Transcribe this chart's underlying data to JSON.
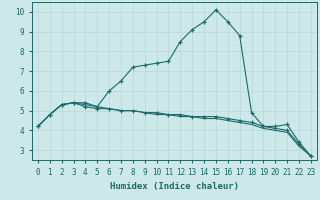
{
  "xlabel": "Humidex (Indice chaleur)",
  "ylabel": "",
  "background_color": "#cce8e8",
  "grid_color": "#b8d8d8",
  "line_color": "#1a6b6b",
  "xlim": [
    -0.5,
    23.5
  ],
  "ylim": [
    2.5,
    10.5
  ],
  "xticks": [
    0,
    1,
    2,
    3,
    4,
    5,
    6,
    7,
    8,
    9,
    10,
    11,
    12,
    13,
    14,
    15,
    16,
    17,
    18,
    19,
    20,
    21,
    22,
    23
  ],
  "yticks": [
    3,
    4,
    5,
    6,
    7,
    8,
    9,
    10
  ],
  "curve1_x": [
    0,
    1,
    2,
    3,
    4,
    5,
    6,
    7,
    8,
    9,
    10,
    11,
    12,
    13,
    14,
    15,
    16,
    17,
    18,
    19,
    20,
    21,
    22,
    23
  ],
  "curve1_y": [
    4.2,
    4.8,
    5.3,
    5.4,
    5.4,
    5.2,
    6.0,
    6.5,
    7.2,
    7.3,
    7.4,
    7.5,
    8.5,
    9.1,
    9.5,
    10.1,
    9.5,
    8.8,
    4.9,
    4.2,
    4.2,
    4.3,
    3.4,
    2.7
  ],
  "curve2_x": [
    0,
    1,
    2,
    3,
    4,
    5,
    6,
    7,
    8,
    9,
    10,
    11,
    12,
    13,
    14,
    15,
    16,
    17,
    18,
    19,
    20,
    21,
    22,
    23
  ],
  "curve2_y": [
    4.2,
    4.8,
    5.3,
    5.4,
    5.2,
    5.1,
    5.1,
    5.0,
    5.0,
    4.9,
    4.9,
    4.8,
    4.8,
    4.7,
    4.7,
    4.7,
    4.6,
    4.5,
    4.4,
    4.2,
    4.1,
    4.0,
    3.3,
    2.7
  ],
  "curve3_x": [
    0,
    1,
    2,
    3,
    4,
    5,
    6,
    7,
    8,
    9,
    10,
    11,
    12,
    13,
    14,
    15,
    16,
    17,
    18,
    19,
    20,
    21,
    22,
    23
  ],
  "curve3_y": [
    4.2,
    4.8,
    5.3,
    5.4,
    5.3,
    5.2,
    5.1,
    5.0,
    5.0,
    4.9,
    4.8,
    4.8,
    4.7,
    4.7,
    4.6,
    4.6,
    4.5,
    4.4,
    4.3,
    4.1,
    4.0,
    3.9,
    3.2,
    2.7
  ],
  "xlabel_fontsize": 6.5,
  "xtick_fontsize": 5.5,
  "ytick_fontsize": 6.5
}
